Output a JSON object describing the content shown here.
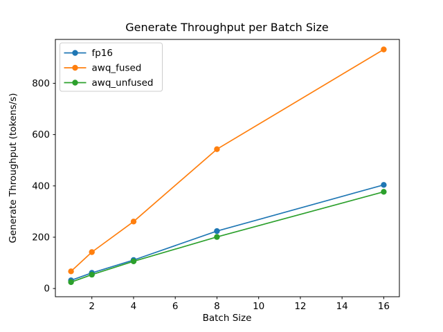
{
  "figure": {
    "background": "#ffffff",
    "frame_color": "#000000"
  },
  "chart_data": {
    "type": "line",
    "title": "Generate Throughput per Batch Size",
    "xlabel": "Batch Size",
    "ylabel": "Generate Throughput (tokens/s)",
    "x": [
      1,
      2,
      4,
      8,
      16
    ],
    "series": [
      {
        "name": "fp16",
        "color": "#1f77b4",
        "values": [
          32,
          61,
          111,
          224,
          404
        ]
      },
      {
        "name": "awq_fused",
        "color": "#ff7f0e",
        "values": [
          67,
          142,
          261,
          543,
          932
        ]
      },
      {
        "name": "awq_unfused",
        "color": "#2ca02c",
        "values": [
          25,
          54,
          106,
          201,
          377
        ]
      }
    ],
    "marker": "o",
    "xticks": [
      2,
      4,
      6,
      8,
      10,
      12,
      14,
      16
    ],
    "yticks": [
      0,
      200,
      400,
      600,
      800
    ],
    "xlim": [
      0.25,
      16.75
    ],
    "ylim": [
      -32,
      971
    ],
    "grid": false,
    "legend_position": "upper left",
    "legend_border_color": "#cccccc",
    "legend_background": "#ffffff"
  }
}
